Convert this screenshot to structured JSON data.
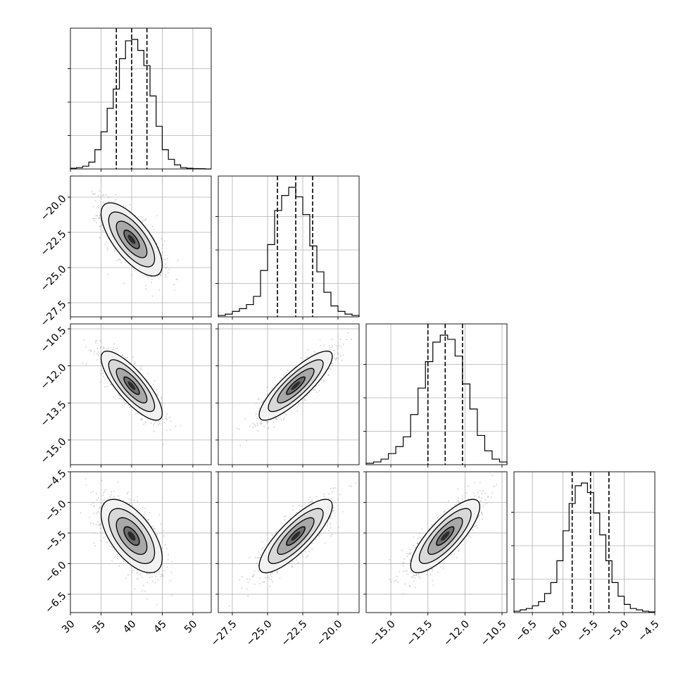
{
  "chart_data": {
    "type": "corner",
    "description": "",
    "parameters": [
      {
        "index": 0,
        "range": [
          30,
          53
        ],
        "ticks": [
          30,
          35,
          40,
          45,
          50
        ],
        "tick_labels": [
          "30",
          "35",
          "40",
          "45",
          "50"
        ],
        "quantiles": [
          37.5,
          40.0,
          42.5
        ],
        "hist": {
          "edges": [
            30,
            31,
            32,
            33,
            34,
            35,
            36,
            37,
            38,
            39,
            40,
            41,
            42,
            43,
            44,
            45,
            46,
            47,
            48,
            49,
            50,
            51,
            52,
            53
          ],
          "counts": [
            0.5,
            1,
            2,
            5,
            14,
            27,
            44,
            58,
            80,
            93,
            94,
            86,
            75,
            53,
            31,
            14,
            7,
            3,
            1,
            0.5,
            0.3,
            0.2,
            0
          ]
        }
      },
      {
        "index": 1,
        "range": [
          -28.5,
          -18.5
        ],
        "ticks": [
          -27.5,
          -25.0,
          -22.5,
          -20.0
        ],
        "tick_labels": [
          "−27.5",
          "−25.0",
          "−22.5",
          "−20.0"
        ],
        "quantiles": [
          -24.3,
          -23.0,
          -21.8
        ],
        "hist": {
          "edges": [
            -28.5,
            -28.0,
            -27.5,
            -27.0,
            -26.5,
            -26.0,
            -25.5,
            -25.0,
            -24.5,
            -24.0,
            -23.5,
            -23.0,
            -22.5,
            -22.0,
            -21.5,
            -21.0,
            -20.5,
            -20.0,
            -19.5,
            -19.0,
            -18.5
          ],
          "counts": [
            1,
            2,
            4,
            6,
            9,
            15,
            34,
            53,
            78,
            89,
            95,
            88,
            75,
            52,
            33,
            18,
            8,
            4,
            2,
            1
          ]
        }
      },
      {
        "index": 2,
        "range": [
          -16,
          -10.3
        ],
        "ticks": [
          -15.0,
          -13.5,
          -12.0,
          -10.5
        ],
        "tick_labels": [
          "−15.0",
          "−13.5",
          "−12.0",
          "−10.5"
        ],
        "quantiles": [
          -13.5,
          -12.8,
          -12.1
        ],
        "hist": {
          "edges": [
            -16.0,
            -15.7,
            -15.4,
            -15.1,
            -14.8,
            -14.5,
            -14.2,
            -13.9,
            -13.6,
            -13.3,
            -13.0,
            -12.7,
            -12.4,
            -12.1,
            -11.8,
            -11.5,
            -11.2,
            -10.9,
            -10.6,
            -10.3
          ],
          "counts": [
            1,
            2,
            4,
            8,
            13,
            20,
            36,
            55,
            74,
            88,
            93,
            90,
            78,
            58,
            40,
            21,
            10,
            4,
            2
          ]
        }
      },
      {
        "index": 3,
        "range": [
          -6.8,
          -4.5
        ],
        "ticks": [
          -6.5,
          -6.0,
          -5.5,
          -5.0,
          -4.5
        ],
        "tick_labels": [
          "−6.5",
          "−6.0",
          "−5.5",
          "−5.0",
          "−4.5"
        ],
        "quantiles": [
          -5.85,
          -5.55,
          -5.25
        ],
        "hist": {
          "edges": [
            -6.8,
            -6.7,
            -6.6,
            -6.5,
            -6.4,
            -6.3,
            -6.2,
            -6.1,
            -6.0,
            -5.9,
            -5.8,
            -5.7,
            -5.6,
            -5.5,
            -5.4,
            -5.3,
            -5.2,
            -5.1,
            -5.0,
            -4.9,
            -4.8,
            -4.7,
            -4.6,
            -4.5
          ],
          "counts": [
            1,
            2,
            3,
            5,
            8,
            14,
            22,
            38,
            60,
            80,
            93,
            95,
            88,
            73,
            57,
            38,
            22,
            12,
            6,
            3,
            2,
            1,
            0.5
          ]
        }
      }
    ],
    "pairs": [
      {
        "x": 0,
        "y": 1,
        "center": [
          40.0,
          -23.0
        ],
        "sigma": [
          2.5,
          1.3
        ],
        "rho": -0.7
      },
      {
        "x": 0,
        "y": 2,
        "center": [
          40.0,
          -12.8
        ],
        "sigma": [
          2.5,
          0.7
        ],
        "rho": -0.8
      },
      {
        "x": 1,
        "y": 2,
        "center": [
          -23.0,
          -12.8
        ],
        "sigma": [
          1.3,
          0.7
        ],
        "rho": 0.85
      },
      {
        "x": 0,
        "y": 3,
        "center": [
          40.0,
          -5.55
        ],
        "sigma": [
          2.5,
          0.3
        ],
        "rho": -0.6
      },
      {
        "x": 1,
        "y": 3,
        "center": [
          -23.0,
          -5.55
        ],
        "sigma": [
          1.3,
          0.3
        ],
        "rho": 0.82
      },
      {
        "x": 2,
        "y": 3,
        "center": [
          -12.8,
          -5.55
        ],
        "sigma": [
          0.7,
          0.3
        ],
        "rho": 0.8
      }
    ],
    "contour_levels_sigma": [
      0.5,
      1.0,
      1.5,
      2.0
    ],
    "grid": true,
    "colors": {
      "line": "#000000",
      "grid": "#b0b0b0",
      "scatter": "#a0a0a0"
    }
  }
}
